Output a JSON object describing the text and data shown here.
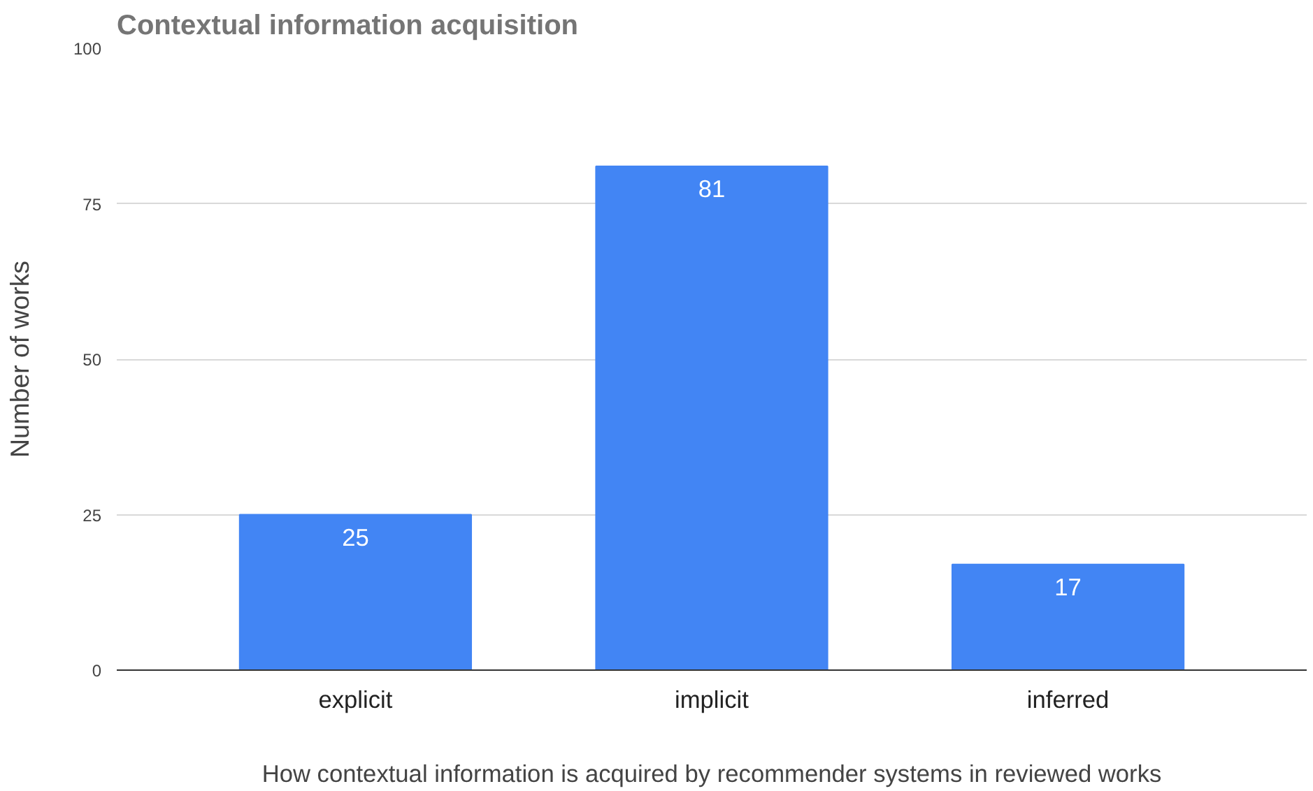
{
  "chart_data": {
    "type": "bar",
    "title": "Contextual information acquisition",
    "xlabel": "How contextual information is acquired by recommender systems in reviewed works",
    "ylabel": "Number of works",
    "categories": [
      "explicit",
      "implicit",
      "inferred"
    ],
    "values": [
      25,
      81,
      17
    ],
    "color": "#4285f4",
    "ylim": [
      0,
      100
    ],
    "yticks": [
      0,
      25,
      50,
      75,
      100
    ],
    "grid": "y",
    "data_labels": true
  }
}
